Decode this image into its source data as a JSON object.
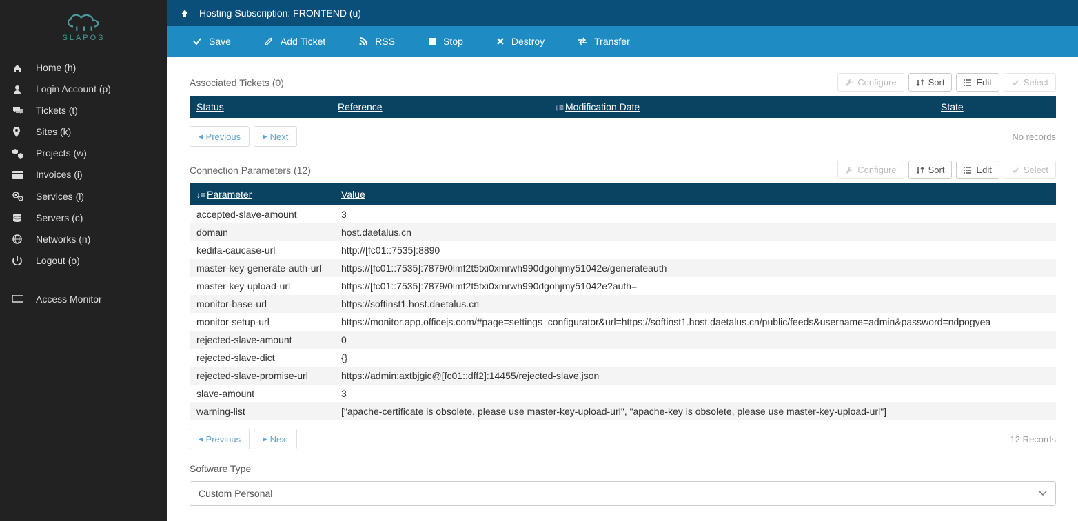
{
  "brand": {
    "name": "SLAPOS"
  },
  "sidebar": {
    "items": [
      {
        "icon": "home",
        "label": "Home (h)"
      },
      {
        "icon": "user",
        "label": "Login Account (p)"
      },
      {
        "icon": "comments",
        "label": "Tickets (t)"
      },
      {
        "icon": "map-pin",
        "label": "Sites (k)"
      },
      {
        "icon": "cubes",
        "label": "Projects (w)"
      },
      {
        "icon": "card",
        "label": "Invoices (i)"
      },
      {
        "icon": "cogs",
        "label": "Services (l)"
      },
      {
        "icon": "database",
        "label": "Servers (c)"
      },
      {
        "icon": "globe",
        "label": "Networks (n)"
      },
      {
        "icon": "power",
        "label": "Logout (o)"
      }
    ],
    "monitor_label": "Access Monitor"
  },
  "header": {
    "title": "Hosting Subscription: FRONTEND (u)"
  },
  "actions": {
    "save": "Save",
    "add_ticket": "Add Ticket",
    "rss": "RSS",
    "stop": "Stop",
    "destroy": "Destroy",
    "transfer": "Transfer"
  },
  "tool_labels": {
    "configure": "Configure",
    "sort": "Sort",
    "edit": "Edit",
    "select": "Select",
    "previous": "Previous",
    "next": "Next",
    "no_records": "No records",
    "n_records": "12 Records"
  },
  "tickets": {
    "title": "Associated Tickets (0)",
    "columns": {
      "status": "Status",
      "reference": "Reference",
      "mod_date": "Modification Date",
      "state": "State"
    }
  },
  "params": {
    "title": "Connection Parameters (12)",
    "columns": {
      "parameter": "Parameter",
      "value": "Value"
    },
    "rows": [
      {
        "p": "accepted-slave-amount",
        "v": "3"
      },
      {
        "p": "domain",
        "v": "host.daetalus.cn"
      },
      {
        "p": "kedifa-caucase-url",
        "v": "http://[fc01::7535]:8890"
      },
      {
        "p": "master-key-generate-auth-url",
        "v": "https://[fc01::7535]:7879/0lmf2t5txi0xmrwh990dgohjmy51042e/generateauth"
      },
      {
        "p": "master-key-upload-url",
        "v": "https://[fc01::7535]:7879/0lmf2t5txi0xmrwh990dgohjmy51042e?auth="
      },
      {
        "p": "monitor-base-url",
        "v": "https://softinst1.host.daetalus.cn"
      },
      {
        "p": "monitor-setup-url",
        "v": "https://monitor.app.officejs.com/#page=settings_configurator&url=https://softinst1.host.daetalus.cn/public/feeds&username=admin&password=ndpogyea"
      },
      {
        "p": "rejected-slave-amount",
        "v": "0"
      },
      {
        "p": "rejected-slave-dict",
        "v": "{}"
      },
      {
        "p": "rejected-slave-promise-url",
        "v": "https://admin:axtbjgic@[fc01::dff2]:14455/rejected-slave.json"
      },
      {
        "p": "slave-amount",
        "v": "3"
      },
      {
        "p": "warning-list",
        "v": "[\"apache-certificate is obsolete, please use master-key-upload-url\", \"apache-key is obsolete, please use master-key-upload-url\"]"
      }
    ]
  },
  "software_type": {
    "label": "Software Type",
    "value": "Custom Personal"
  },
  "colors": {
    "sidebar_bg": "#222222",
    "topbar_bg": "#0a4f7a",
    "actionbar_bg": "#1e8bc3",
    "table_header_bg": "#0a4262",
    "accent": "#5fb3b3",
    "divider": "#d9531e"
  }
}
